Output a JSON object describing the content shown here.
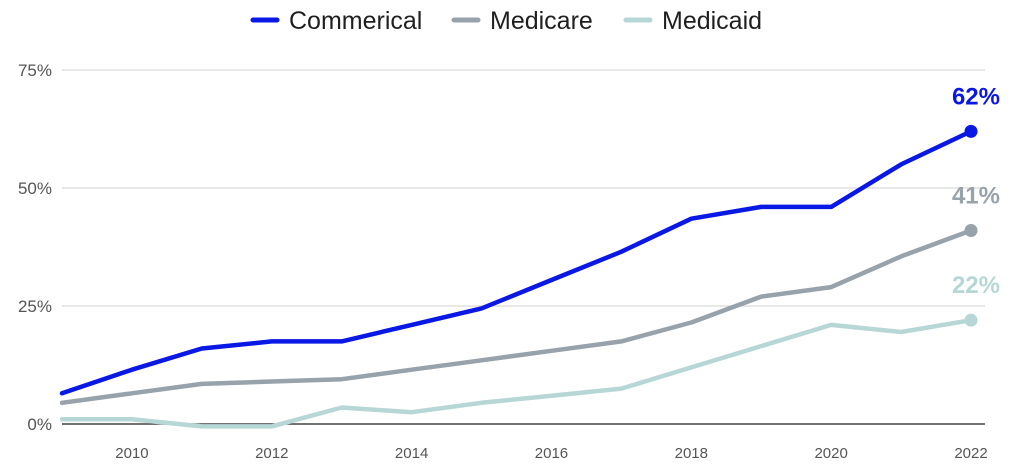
{
  "chart_data": {
    "type": "line",
    "title": "",
    "xlabel": "",
    "ylabel": "",
    "x": [
      2009,
      2010,
      2011,
      2012,
      2013,
      2014,
      2015,
      2016,
      2017,
      2018,
      2019,
      2020,
      2021,
      2022
    ],
    "xlim": [
      2009,
      2022.2
    ],
    "ylim": [
      0,
      75
    ],
    "x_ticks": [
      "2010",
      "2012",
      "2014",
      "2016",
      "2018",
      "2020",
      "2022"
    ],
    "x_tick_values": [
      2010,
      2012,
      2014,
      2016,
      2018,
      2020,
      2022
    ],
    "y_ticks": [
      "0%",
      "25%",
      "50%",
      "75%"
    ],
    "y_tick_values": [
      0,
      25,
      50,
      75
    ],
    "grid": true,
    "legend_position": "top-center",
    "series": [
      {
        "name": "Commerical",
        "color": "#0a18e6",
        "values": [
          6.5,
          11.5,
          16,
          17.5,
          17.5,
          21,
          24.5,
          30.5,
          36.5,
          43.5,
          46,
          46,
          55,
          62
        ],
        "end_label": "62%"
      },
      {
        "name": "Medicare",
        "color": "#97a2ab",
        "values": [
          4.5,
          6.5,
          8.5,
          9,
          9.5,
          11.5,
          13.5,
          15.5,
          17.5,
          21.5,
          27,
          29,
          35.5,
          41
        ],
        "end_label": "41%"
      },
      {
        "name": "Medicaid",
        "color": "#b7d6d6",
        "values": [
          1,
          1,
          -0.5,
          -0.5,
          3.5,
          2.5,
          4.5,
          6,
          7.5,
          12,
          16.5,
          21,
          19.5,
          22
        ],
        "end_label": "22%"
      }
    ]
  }
}
